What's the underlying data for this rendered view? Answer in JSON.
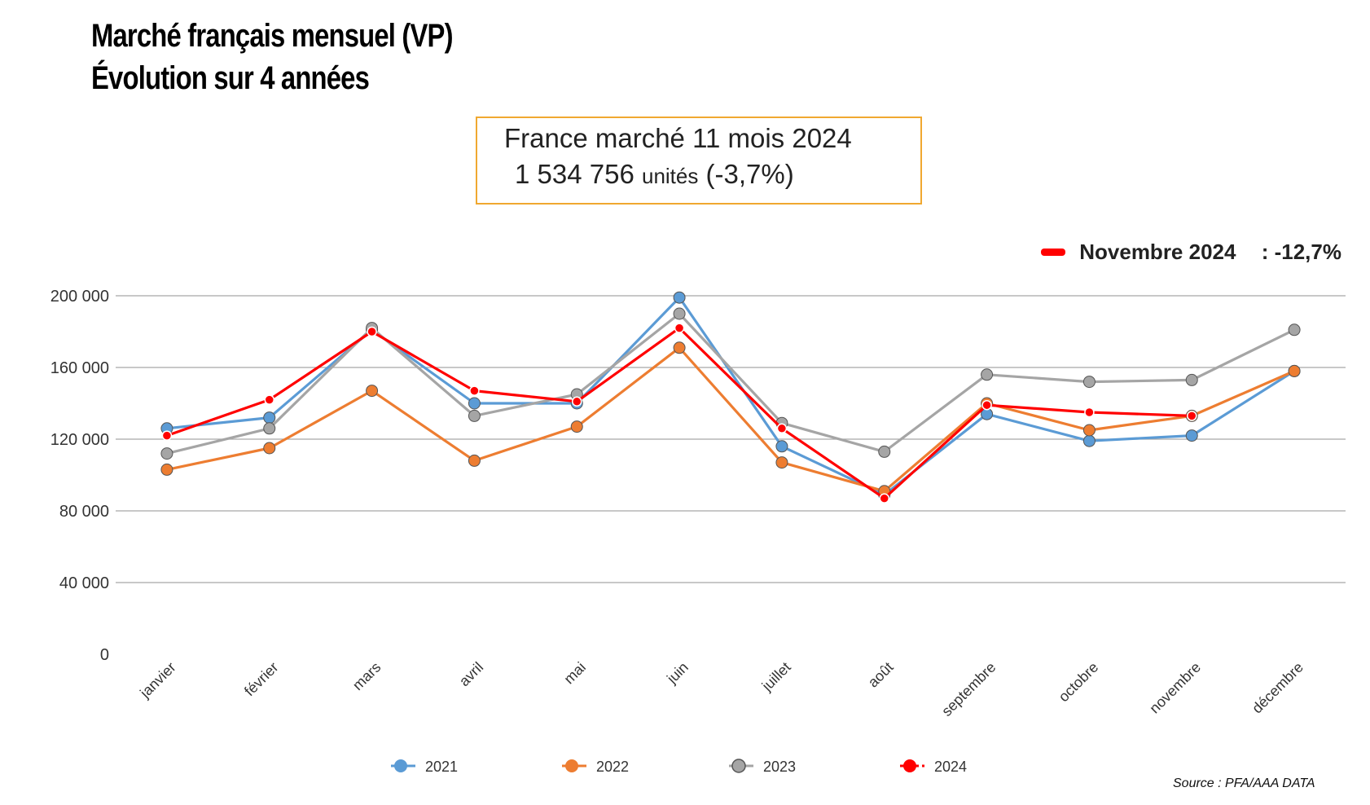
{
  "header": {
    "title_line1": "Marché français mensuel (VP)",
    "title_line2": "Évolution sur 4 années"
  },
  "summary": {
    "line1": "France marché 11 mois 2024",
    "units_value": "1 534 756",
    "units_label": "unités",
    "change": "(-3,7%)"
  },
  "callout": {
    "label": "Novembre 2024",
    "value": ": -12,7%"
  },
  "source": "Source : PFA/AAA DATA",
  "colors": {
    "2021": "#5b9bd5",
    "2022": "#ed7d31",
    "2023": "#a5a5a5",
    "2024": "#ff0000",
    "grid": "#a6a6a6",
    "summary_border": "#f0a830"
  },
  "chart_data": {
    "type": "line",
    "categories": [
      "janvier",
      "février",
      "mars",
      "avril",
      "mai",
      "juin",
      "juillet",
      "août",
      "septembre",
      "octobre",
      "novembre",
      "décembre"
    ],
    "ylim": [
      0,
      200000
    ],
    "yticks": [
      0,
      40000,
      80000,
      120000,
      160000,
      200000
    ],
    "ytick_labels": [
      "0",
      "40 000",
      "80 000",
      "120 000",
      "160 000",
      "200 000"
    ],
    "grid": true,
    "legend_position": "bottom",
    "series": [
      {
        "name": "2021",
        "color": "#5b9bd5",
        "values": [
          126000,
          132000,
          181000,
          140000,
          140000,
          199000,
          116000,
          89000,
          134000,
          119000,
          122000,
          158000
        ]
      },
      {
        "name": "2022",
        "color": "#ed7d31",
        "values": [
          103000,
          115000,
          147000,
          108000,
          127000,
          171000,
          107000,
          91000,
          140000,
          125000,
          133000,
          158000
        ]
      },
      {
        "name": "2023",
        "color": "#a5a5a5",
        "values": [
          112000,
          126000,
          182000,
          133000,
          145000,
          190000,
          129000,
          113000,
          156000,
          152000,
          153000,
          181000
        ]
      },
      {
        "name": "2024",
        "color": "#ff0000",
        "values": [
          122000,
          142000,
          180000,
          147000,
          141000,
          182000,
          126000,
          87000,
          139000,
          135000,
          133000,
          null
        ]
      }
    ]
  }
}
